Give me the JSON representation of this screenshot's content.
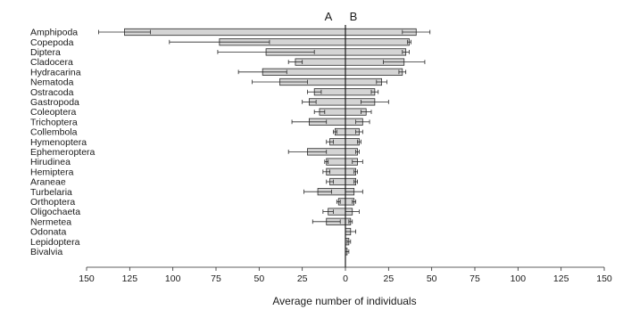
{
  "chart_data": {
    "type": "bar",
    "orientation": "horizontal",
    "layout": "back-to-back",
    "sides": [
      "A",
      "B"
    ],
    "xlabel": "Average number of individuals",
    "xlim": [
      -150,
      150
    ],
    "xticks": [
      -150,
      -125,
      -100,
      -75,
      -50,
      -25,
      0,
      25,
      50,
      75,
      100,
      125,
      150
    ],
    "xtick_labels": [
      "150",
      "125",
      "100",
      "75",
      "50",
      "25",
      "0",
      "25",
      "50",
      "75",
      "100",
      "125",
      "150"
    ],
    "categories": [
      "Amphipoda",
      "Copepoda",
      "Diptera",
      "Cladocera",
      "Hydracarina",
      "Nematoda",
      "Ostracoda",
      "Gastropoda",
      "Coleoptera",
      "Trichoptera",
      "Collembola",
      "Hymenoptera",
      "Ephemeroptera",
      "Hirudinea",
      "Hemiptera",
      "Araneae",
      "Turbelaria",
      "Orthoptera",
      "Oligochaeta",
      "Nermetea",
      "Odonata",
      "Lepidoptera",
      "Bivalvia"
    ],
    "series": [
      {
        "name": "A",
        "values": [
          128,
          73,
          46,
          29,
          48,
          38,
          18,
          21,
          15,
          21,
          6,
          9,
          22,
          11,
          11,
          9,
          16,
          4,
          10,
          11,
          0,
          0,
          0
        ],
        "errors": [
          15,
          29,
          28,
          4,
          14,
          16,
          4,
          4,
          3,
          10,
          1,
          2,
          11,
          1,
          2,
          2,
          8,
          1,
          3,
          8,
          0,
          0,
          0
        ]
      },
      {
        "name": "B",
        "values": [
          41,
          37,
          35,
          34,
          33,
          21,
          17,
          17,
          12,
          10,
          8,
          8,
          7,
          7,
          6,
          6,
          5,
          5,
          4,
          3,
          3,
          2,
          1
        ],
        "errors": [
          8,
          1,
          2,
          12,
          2,
          3,
          2,
          8,
          3,
          4,
          2,
          1,
          1,
          3,
          1,
          1,
          5,
          1,
          4,
          1,
          3,
          1,
          1
        ]
      }
    ]
  }
}
